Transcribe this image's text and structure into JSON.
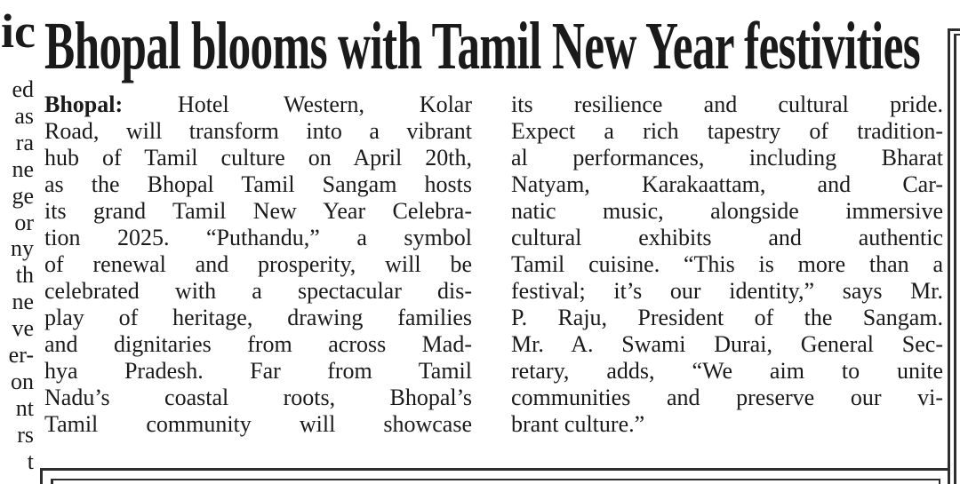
{
  "colors": {
    "background": "#ffffff",
    "text": "#1a1a1a",
    "rule": "#2e2e2e"
  },
  "headline": {
    "text": "Bhopal blooms with Tamil New Year festivities"
  },
  "article": {
    "column1": {
      "lines": [
        {
          "bold": "Bhopal:",
          "text": "Hotel Western, Kolar"
        },
        "Road, will transform into a vibrant",
        "hub of Tamil culture on April 20th,",
        "as the Bhopal Tamil Sangam hosts",
        "its grand Tamil New Year Celebra-",
        "tion 2025. “Puthandu,” a symbol",
        "of renewal and prosperity, will be",
        "celebrated with a spectacular dis-",
        "play of heritage, drawing families",
        "and dignitaries from across Mad-",
        "hya Pradesh. Far from Tamil",
        "Nadu’s coastal roots, Bhopal’s",
        "Tamil community will showcase"
      ]
    },
    "column2": {
      "lines": [
        "its resilience and cultural pride.",
        "Expect a rich tapestry of tradition-",
        "al performances, including Bharat",
        "Natyam, Karakaattam, and Car-",
        "natic music, alongside immersive",
        "cultural exhibits and authentic",
        "Tamil cuisine. “This is more than a",
        "festival; it’s our identity,” says Mr.",
        "P. Raju, President of the Sangam.",
        "Mr. A. Swami Durai, General Sec-",
        "retary, adds, “We aim to unite",
        "communities and preserve our vi-",
        "brant culture.”"
      ]
    }
  },
  "left_edge_fragments": {
    "headline_fragment": "ic",
    "body_fragments": [
      "ed",
      "as",
      "ra",
      "ne",
      "ge",
      "or",
      "ny",
      "th",
      "ne",
      "ve",
      "er-",
      "on",
      "nt",
      "rs",
      "t"
    ]
  }
}
